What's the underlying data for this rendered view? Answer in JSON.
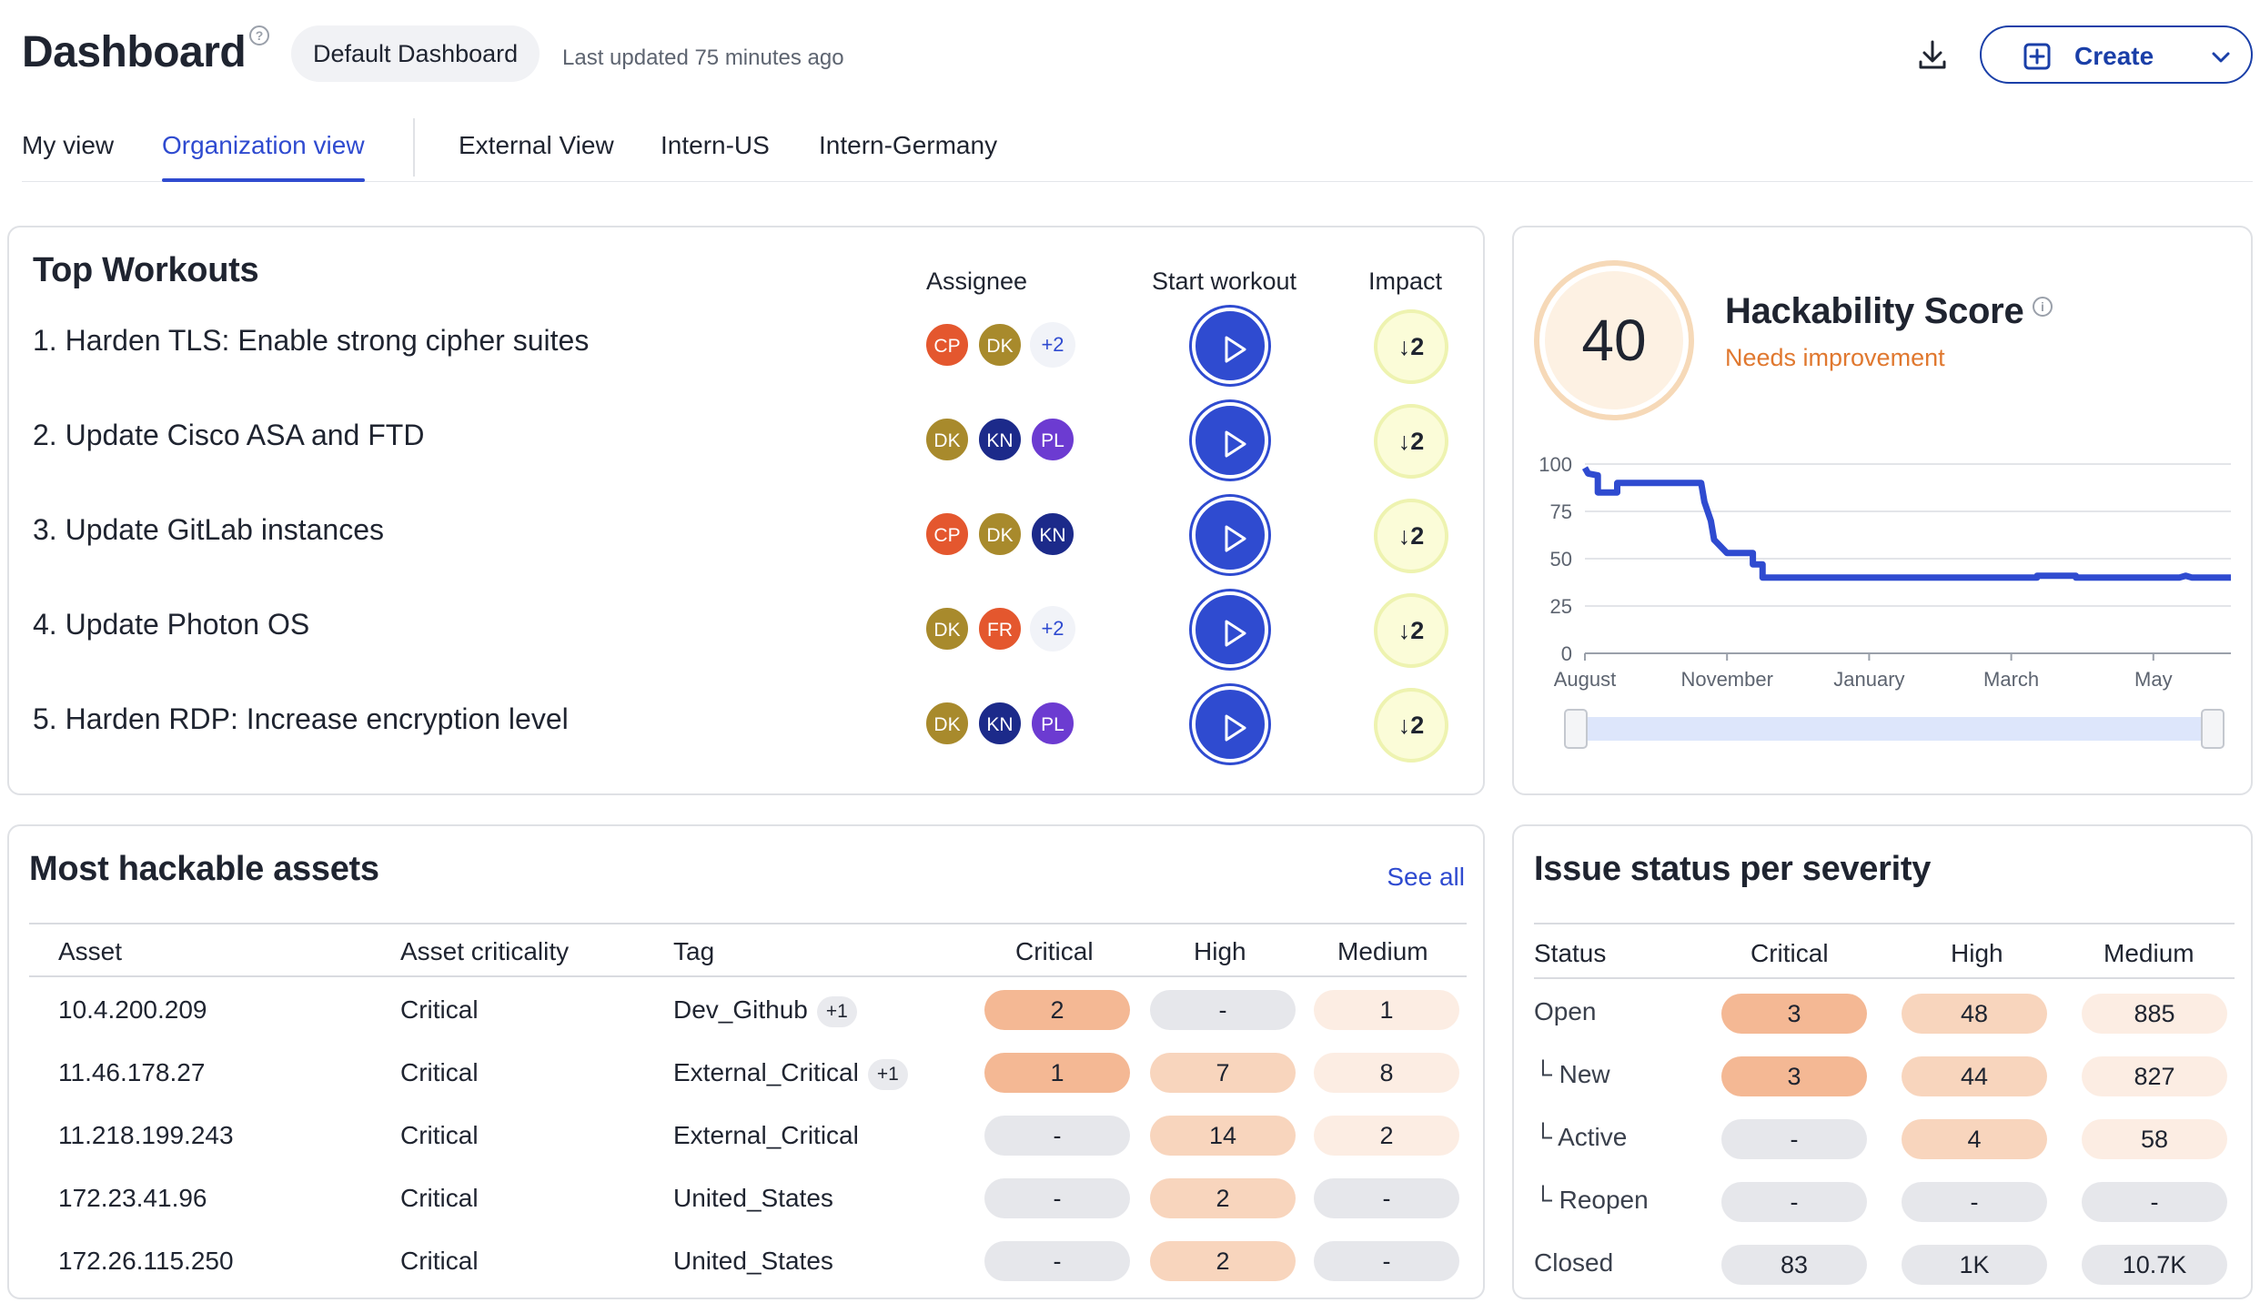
{
  "header": {
    "title": "Dashboard",
    "dashboard_selector": "Default Dashboard",
    "last_updated": "Last updated 75 minutes ago",
    "create_label": "Create"
  },
  "tabs": [
    {
      "label": "My view",
      "active": false
    },
    {
      "label": "Organization view",
      "active": true
    },
    {
      "label": "External View",
      "active": false
    },
    {
      "label": "Intern-US",
      "active": false
    },
    {
      "label": "Intern-Germany",
      "active": false
    }
  ],
  "top_workouts": {
    "title": "Top Workouts",
    "headers": {
      "assignee": "Assignee",
      "start": "Start workout",
      "impact": "Impact"
    },
    "items": [
      {
        "label": "1. Harden TLS: Enable strong cipher suites",
        "assignees": [
          "CP",
          "DK"
        ],
        "more": "+2",
        "impact": "2"
      },
      {
        "label": "2. Update Cisco ASA and FTD",
        "assignees": [
          "DK",
          "KN",
          "PL"
        ],
        "more": "",
        "impact": "2"
      },
      {
        "label": "3. Update GitLab instances",
        "assignees": [
          "CP",
          "DK",
          "KN"
        ],
        "more": "",
        "impact": "2"
      },
      {
        "label": "4. Update Photon OS",
        "assignees": [
          "DK",
          "FR"
        ],
        "more": "+2",
        "impact": "2"
      },
      {
        "label": "5. Harden RDP: Increase encryption level",
        "assignees": [
          "DK",
          "KN",
          "PL"
        ],
        "more": "",
        "impact": "2"
      }
    ],
    "avatar_colors": {
      "CP": "#e4572e",
      "DK": "#a88a2c",
      "KN": "#1c2a8a",
      "PL": "#6c3bd1",
      "FR": "#e4572e"
    },
    "accent": "#2f4bd0"
  },
  "hackability": {
    "score": "40",
    "title": "Hackability Score",
    "status": "Needs improvement",
    "status_color": "#e0782f",
    "chart_data": {
      "type": "line",
      "y_ticks": [
        "100",
        "75",
        "50",
        "25",
        "0"
      ],
      "x_ticks": [
        "August",
        "November",
        "January",
        "March",
        "May"
      ],
      "ylim": [
        0,
        100
      ],
      "series": [
        {
          "values": [
            [
              0,
              98
            ],
            [
              0.05,
              95
            ],
            [
              0.2,
              94
            ],
            [
              0.2,
              85
            ],
            [
              0.5,
              85
            ],
            [
              0.5,
              90
            ],
            [
              1.8,
              90
            ],
            [
              1.85,
              80
            ],
            [
              1.95,
              70
            ],
            [
              2.0,
              60
            ],
            [
              2.2,
              53
            ],
            [
              2.6,
              53
            ],
            [
              2.6,
              47
            ],
            [
              2.75,
              47
            ],
            [
              2.75,
              40
            ],
            [
              7.0,
              40
            ],
            [
              7.0,
              41
            ],
            [
              7.6,
              41
            ],
            [
              7.6,
              40
            ],
            [
              9.2,
              40
            ],
            [
              9.3,
              41
            ],
            [
              9.4,
              40
            ],
            [
              10.0,
              40
            ]
          ]
        }
      ],
      "x_tick_positions": [
        0,
        2.2,
        4.4,
        6.6,
        8.8
      ],
      "x_range": [
        0,
        10
      ],
      "color": "#2f4bd0"
    }
  },
  "assets": {
    "title": "Most hackable assets",
    "see_all": "See all",
    "headers": {
      "asset": "Asset",
      "criticality": "Asset criticality",
      "tag": "Tag",
      "critical": "Critical",
      "high": "High",
      "medium": "Medium"
    },
    "rows": [
      {
        "asset": "10.4.200.209",
        "criticality": "Critical",
        "tag": "Dev_Github",
        "tag_more": "+1",
        "critical": "2",
        "high": "-",
        "medium": "1",
        "levels": [
          "c-hi",
          "c-none",
          "c-lo"
        ]
      },
      {
        "asset": "11.46.178.27",
        "criticality": "Critical",
        "tag": "External_Critical",
        "tag_more": "+1",
        "critical": "1",
        "high": "7",
        "medium": "8",
        "levels": [
          "c-hi",
          "c-md",
          "c-lo"
        ]
      },
      {
        "asset": "11.218.199.243",
        "criticality": "Critical",
        "tag": "External_Critical",
        "tag_more": "",
        "critical": "-",
        "high": "14",
        "medium": "2",
        "levels": [
          "c-none",
          "c-md",
          "c-lo"
        ]
      },
      {
        "asset": "172.23.41.96",
        "criticality": "Critical",
        "tag": "United_States",
        "tag_more": "",
        "critical": "-",
        "high": "2",
        "medium": "-",
        "levels": [
          "c-none",
          "c-md",
          "c-none"
        ]
      },
      {
        "asset": "172.26.115.250",
        "criticality": "Critical",
        "tag": "United_States",
        "tag_more": "",
        "critical": "-",
        "high": "2",
        "medium": "-",
        "levels": [
          "c-none",
          "c-md",
          "c-none"
        ]
      }
    ]
  },
  "issues": {
    "title": "Issue status per severity",
    "headers": {
      "status": "Status",
      "critical": "Critical",
      "high": "High",
      "medium": "Medium"
    },
    "rows": [
      {
        "status": "Open",
        "critical": "3",
        "high": "48",
        "medium": "885",
        "levels": [
          "c-hi",
          "c-md",
          "c-lo"
        ]
      },
      {
        "status": "└ New",
        "critical": "3",
        "high": "44",
        "medium": "827",
        "levels": [
          "c-hi",
          "c-md",
          "c-lo"
        ]
      },
      {
        "status": "└ Active",
        "critical": "-",
        "high": "4",
        "medium": "58",
        "levels": [
          "c-none",
          "c-md",
          "c-lo"
        ]
      },
      {
        "status": "└ Reopen",
        "critical": "-",
        "high": "-",
        "medium": "-",
        "levels": [
          "c-none",
          "c-none",
          "c-none"
        ]
      },
      {
        "status": "Closed",
        "critical": "83",
        "high": "1K",
        "medium": "10.7K",
        "levels": [
          "c-none",
          "c-none",
          "c-none"
        ]
      }
    ]
  }
}
